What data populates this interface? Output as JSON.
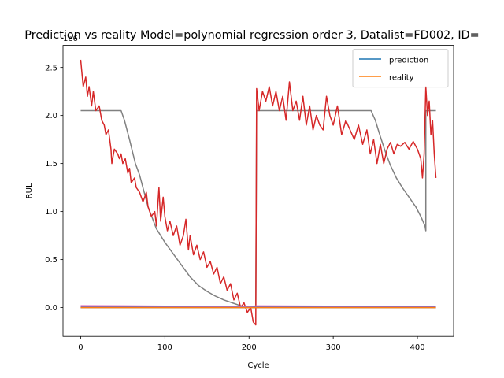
{
  "chart_data": {
    "type": "line",
    "title": "Prediction vs reality Model=polynomial regression order 3, Datalist=FD002, ID=",
    "xlabel": "Cycle",
    "ylabel": "RUL",
    "offset_text": "1e6",
    "xlim": [
      -21,
      443
    ],
    "ylim": [
      -0.3,
      2.73
    ],
    "y_scale_factor": 1000000,
    "xticks": [
      0,
      100,
      200,
      300,
      400
    ],
    "yticks": [
      0.0,
      0.5,
      1.0,
      1.5,
      2.0,
      2.5
    ],
    "ytick_labels": [
      "0.0",
      "0.5",
      "1.0",
      "1.5",
      "2.0",
      "2.5"
    ],
    "grid": false,
    "legend": {
      "position": "top-right",
      "entries": [
        {
          "label": "prediction",
          "color": "#1f77b4"
        },
        {
          "label": "reality",
          "color": "#ff7f0e"
        }
      ]
    },
    "series": [
      {
        "color": "#808080",
        "points": [
          [
            0,
            2.05
          ],
          [
            48,
            2.05
          ],
          [
            52,
            1.95
          ],
          [
            58,
            1.75
          ],
          [
            65,
            1.5
          ],
          [
            70,
            1.38
          ],
          [
            80,
            1.05
          ],
          [
            90,
            0.82
          ],
          [
            100,
            0.68
          ],
          [
            110,
            0.56
          ],
          [
            120,
            0.44
          ],
          [
            130,
            0.32
          ],
          [
            140,
            0.23
          ],
          [
            150,
            0.17
          ],
          [
            160,
            0.12
          ],
          [
            170,
            0.08
          ],
          [
            180,
            0.05
          ],
          [
            190,
            0.02
          ],
          [
            200,
            0.0
          ],
          [
            208,
            0.0
          ],
          [
            209,
            2.05
          ],
          [
            340,
            2.05
          ],
          [
            345,
            2.05
          ],
          [
            350,
            1.95
          ],
          [
            356,
            1.78
          ],
          [
            362,
            1.62
          ],
          [
            368,
            1.48
          ],
          [
            375,
            1.35
          ],
          [
            382,
            1.25
          ],
          [
            390,
            1.15
          ],
          [
            398,
            1.05
          ],
          [
            404,
            0.95
          ],
          [
            409,
            0.85
          ],
          [
            410,
            0.8
          ],
          [
            410,
            2.05
          ],
          [
            422,
            2.05
          ]
        ]
      },
      {
        "color": "#d62728",
        "points": [
          [
            0,
            2.58
          ],
          [
            3,
            2.3
          ],
          [
            6,
            2.4
          ],
          [
            8,
            2.2
          ],
          [
            10,
            2.3
          ],
          [
            13,
            2.1
          ],
          [
            15,
            2.25
          ],
          [
            18,
            2.05
          ],
          [
            22,
            2.1
          ],
          [
            25,
            1.95
          ],
          [
            28,
            1.9
          ],
          [
            30,
            1.8
          ],
          [
            33,
            1.85
          ],
          [
            36,
            1.65
          ],
          [
            37,
            1.5
          ],
          [
            40,
            1.65
          ],
          [
            44,
            1.6
          ],
          [
            46,
            1.55
          ],
          [
            48,
            1.6
          ],
          [
            50,
            1.5
          ],
          [
            53,
            1.55
          ],
          [
            56,
            1.4
          ],
          [
            58,
            1.45
          ],
          [
            60,
            1.3
          ],
          [
            64,
            1.35
          ],
          [
            66,
            1.25
          ],
          [
            70,
            1.2
          ],
          [
            74,
            1.1
          ],
          [
            78,
            1.2
          ],
          [
            80,
            1.05
          ],
          [
            84,
            0.95
          ],
          [
            88,
            1.0
          ],
          [
            90,
            0.85
          ],
          [
            93,
            1.25
          ],
          [
            95,
            0.9
          ],
          [
            98,
            1.15
          ],
          [
            100,
            0.95
          ],
          [
            103,
            0.8
          ],
          [
            106,
            0.9
          ],
          [
            110,
            0.75
          ],
          [
            114,
            0.85
          ],
          [
            118,
            0.65
          ],
          [
            122,
            0.75
          ],
          [
            125,
            0.92
          ],
          [
            128,
            0.6
          ],
          [
            130,
            0.75
          ],
          [
            134,
            0.55
          ],
          [
            138,
            0.65
          ],
          [
            142,
            0.5
          ],
          [
            146,
            0.58
          ],
          [
            150,
            0.42
          ],
          [
            154,
            0.48
          ],
          [
            158,
            0.35
          ],
          [
            162,
            0.42
          ],
          [
            166,
            0.25
          ],
          [
            170,
            0.32
          ],
          [
            174,
            0.18
          ],
          [
            178,
            0.25
          ],
          [
            182,
            0.08
          ],
          [
            186,
            0.15
          ],
          [
            190,
            0.0
          ],
          [
            194,
            0.05
          ],
          [
            198,
            -0.05
          ],
          [
            202,
            0.0
          ],
          [
            205,
            -0.15
          ],
          [
            208,
            -0.18
          ],
          [
            209,
            2.28
          ],
          [
            212,
            2.05
          ],
          [
            216,
            2.25
          ],
          [
            220,
            2.15
          ],
          [
            224,
            2.3
          ],
          [
            228,
            2.1
          ],
          [
            232,
            2.25
          ],
          [
            236,
            2.05
          ],
          [
            240,
            2.2
          ],
          [
            244,
            1.95
          ],
          [
            248,
            2.35
          ],
          [
            252,
            2.05
          ],
          [
            256,
            2.15
          ],
          [
            260,
            1.95
          ],
          [
            264,
            2.2
          ],
          [
            268,
            1.9
          ],
          [
            272,
            2.1
          ],
          [
            276,
            1.85
          ],
          [
            280,
            2.0
          ],
          [
            284,
            1.9
          ],
          [
            288,
            1.85
          ],
          [
            292,
            2.2
          ],
          [
            296,
            2.0
          ],
          [
            300,
            1.9
          ],
          [
            305,
            2.1
          ],
          [
            310,
            1.8
          ],
          [
            315,
            1.95
          ],
          [
            320,
            1.85
          ],
          [
            325,
            1.75
          ],
          [
            330,
            1.9
          ],
          [
            335,
            1.7
          ],
          [
            340,
            1.85
          ],
          [
            344,
            1.6
          ],
          [
            348,
            1.75
          ],
          [
            352,
            1.5
          ],
          [
            356,
            1.7
          ],
          [
            360,
            1.5
          ],
          [
            364,
            1.65
          ],
          [
            368,
            1.72
          ],
          [
            372,
            1.6
          ],
          [
            376,
            1.7
          ],
          [
            380,
            1.68
          ],
          [
            385,
            1.72
          ],
          [
            390,
            1.65
          ],
          [
            395,
            1.73
          ],
          [
            400,
            1.65
          ],
          [
            404,
            1.55
          ],
          [
            406,
            1.35
          ],
          [
            408,
            1.6
          ],
          [
            410,
            2.3
          ],
          [
            412,
            2.0
          ],
          [
            414,
            2.15
          ],
          [
            416,
            1.8
          ],
          [
            418,
            1.95
          ],
          [
            420,
            1.6
          ],
          [
            422,
            1.35
          ]
        ]
      },
      {
        "color": "#e377c2",
        "points": [
          [
            0,
            0.02
          ],
          [
            50,
            0.018
          ],
          [
            100,
            0.015
          ],
          [
            150,
            0.01
          ],
          [
            200,
            0.012
          ],
          [
            210,
            0.018
          ],
          [
            260,
            0.016
          ],
          [
            320,
            0.014
          ],
          [
            380,
            0.012
          ],
          [
            422,
            0.013
          ]
        ]
      },
      {
        "color": "#9467bd",
        "points": [
          [
            0,
            0.008
          ],
          [
            100,
            0.006
          ],
          [
            200,
            0.004
          ],
          [
            210,
            0.008
          ],
          [
            300,
            0.006
          ],
          [
            422,
            0.006
          ]
        ]
      },
      {
        "color": "#1f77b4",
        "points": [
          [
            0,
            0.0
          ],
          [
            422,
            0.0
          ]
        ]
      },
      {
        "color": "#ff7f0e",
        "points": [
          [
            0,
            0.0
          ],
          [
            422,
            0.0
          ]
        ]
      }
    ]
  }
}
